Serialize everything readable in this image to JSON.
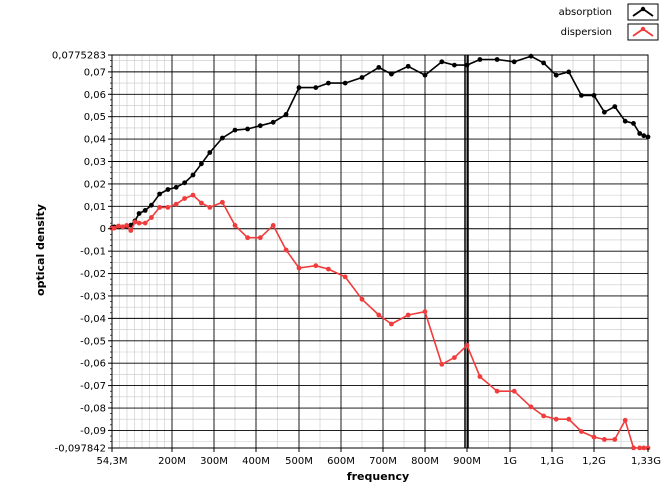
{
  "chart_data": {
    "type": "line",
    "xlabel": "frequency",
    "ylabel": "optical density",
    "x_axis": {
      "scale": "log",
      "ticks": [
        {
          "value": 54.3,
          "label": "54,3M"
        },
        {
          "value": 200,
          "label": "200M"
        },
        {
          "value": 300,
          "label": "300M"
        },
        {
          "value": 400,
          "label": "400M"
        },
        {
          "value": 500,
          "label": "500M"
        },
        {
          "value": 600,
          "label": "600M"
        },
        {
          "value": 700,
          "label": "700M"
        },
        {
          "value": 800,
          "label": "800M"
        },
        {
          "value": 900,
          "label": "900M"
        },
        {
          "value": 1000,
          "label": "1G"
        },
        {
          "value": 1100,
          "label": "1,1G"
        },
        {
          "value": 1200,
          "label": "1,2G"
        },
        {
          "value": 1330,
          "label": "1,33G"
        }
      ],
      "range": [
        54.3,
        1330
      ],
      "unit": "MHz"
    },
    "y_axis": {
      "range": [
        -0.097842,
        0.0775283
      ],
      "tick_labels": [
        "0,0775283",
        "0,07",
        "0,06",
        "0,05",
        "0,04",
        "0,03",
        "0,02",
        "0,01",
        "0",
        "-0,01",
        "-0,02",
        "-0,03",
        "-0,04",
        "-0,05",
        "-0,06",
        "-0,07",
        "-0,08",
        "-0,09",
        "-0,097842"
      ],
      "tick_values": [
        0.0775283,
        0.07,
        0.06,
        0.05,
        0.04,
        0.03,
        0.02,
        0.01,
        0,
        -0.01,
        -0.02,
        -0.03,
        -0.04,
        -0.05,
        -0.06,
        -0.07,
        -0.08,
        -0.09,
        -0.097842
      ]
    },
    "grid": true,
    "cursor_x": 900,
    "legend_position": "top-right",
    "series": [
      {
        "name": "absorption",
        "color": "#000000",
        "points": [
          [
            54.3,
            0.0005
          ],
          [
            60,
            0.0008
          ],
          [
            70,
            0.0008
          ],
          [
            80,
            0.0008
          ],
          [
            90,
            0.0012
          ],
          [
            100,
            0.0016
          ],
          [
            110,
            0.0035
          ],
          [
            120,
            0.0068
          ],
          [
            135,
            0.0082
          ],
          [
            150,
            0.0105
          ],
          [
            170,
            0.0155
          ],
          [
            190,
            0.0175
          ],
          [
            210,
            0.0185
          ],
          [
            230,
            0.0205
          ],
          [
            250,
            0.024
          ],
          [
            270,
            0.029
          ],
          [
            290,
            0.034
          ],
          [
            320,
            0.0405
          ],
          [
            350,
            0.044
          ],
          [
            380,
            0.0445
          ],
          [
            410,
            0.046
          ],
          [
            440,
            0.0475
          ],
          [
            470,
            0.051
          ],
          [
            500,
            0.063
          ],
          [
            540,
            0.063
          ],
          [
            570,
            0.065
          ],
          [
            610,
            0.065
          ],
          [
            650,
            0.0675
          ],
          [
            690,
            0.072
          ],
          [
            720,
            0.069
          ],
          [
            760,
            0.0725
          ],
          [
            800,
            0.0685
          ],
          [
            840,
            0.0745
          ],
          [
            870,
            0.073
          ],
          [
            900,
            0.073
          ],
          [
            930,
            0.0755
          ],
          [
            970,
            0.0755
          ],
          [
            1010,
            0.0745
          ],
          [
            1050,
            0.077
          ],
          [
            1080,
            0.074
          ],
          [
            1110,
            0.0685
          ],
          [
            1140,
            0.07
          ],
          [
            1170,
            0.0595
          ],
          [
            1200,
            0.0595
          ],
          [
            1225,
            0.052
          ],
          [
            1250,
            0.0545
          ],
          [
            1275,
            0.048
          ],
          [
            1295,
            0.047
          ],
          [
            1310,
            0.0425
          ],
          [
            1320,
            0.0415
          ],
          [
            1330,
            0.041
          ]
        ]
      },
      {
        "name": "dispersion",
        "color": "#f03c3c",
        "points": [
          [
            54.3,
            0.0002
          ],
          [
            60,
            0.0003
          ],
          [
            70,
            0.0012
          ],
          [
            80,
            0.0008
          ],
          [
            90,
            0.0015
          ],
          [
            100,
            -0.0008
          ],
          [
            110,
            0.003
          ],
          [
            120,
            0.0025
          ],
          [
            135,
            0.0025
          ],
          [
            150,
            0.005
          ],
          [
            170,
            0.0095
          ],
          [
            190,
            0.0095
          ],
          [
            210,
            0.011
          ],
          [
            230,
            0.0135
          ],
          [
            250,
            0.015
          ],
          [
            270,
            0.0115
          ],
          [
            290,
            0.0095
          ],
          [
            320,
            0.0118
          ],
          [
            350,
            0.0015
          ],
          [
            380,
            -0.004
          ],
          [
            410,
            -0.004
          ],
          [
            440,
            0.0015
          ],
          [
            470,
            -0.0095
          ],
          [
            500,
            -0.0175
          ],
          [
            540,
            -0.0165
          ],
          [
            570,
            -0.018
          ],
          [
            610,
            -0.0215
          ],
          [
            650,
            -0.0315
          ],
          [
            690,
            -0.0385
          ],
          [
            720,
            -0.0425
          ],
          [
            760,
            -0.0385
          ],
          [
            800,
            -0.037
          ],
          [
            840,
            -0.0605
          ],
          [
            870,
            -0.0575
          ],
          [
            900,
            -0.052
          ],
          [
            930,
            -0.066
          ],
          [
            970,
            -0.0725
          ],
          [
            1010,
            -0.0725
          ],
          [
            1050,
            -0.0795
          ],
          [
            1080,
            -0.0835
          ],
          [
            1110,
            -0.085
          ],
          [
            1140,
            -0.085
          ],
          [
            1170,
            -0.0905
          ],
          [
            1200,
            -0.093
          ],
          [
            1225,
            -0.094
          ],
          [
            1250,
            -0.094
          ],
          [
            1275,
            -0.0855
          ],
          [
            1295,
            -0.0978
          ],
          [
            1310,
            -0.0978
          ],
          [
            1320,
            -0.0978
          ],
          [
            1330,
            -0.0978
          ]
        ]
      }
    ]
  }
}
